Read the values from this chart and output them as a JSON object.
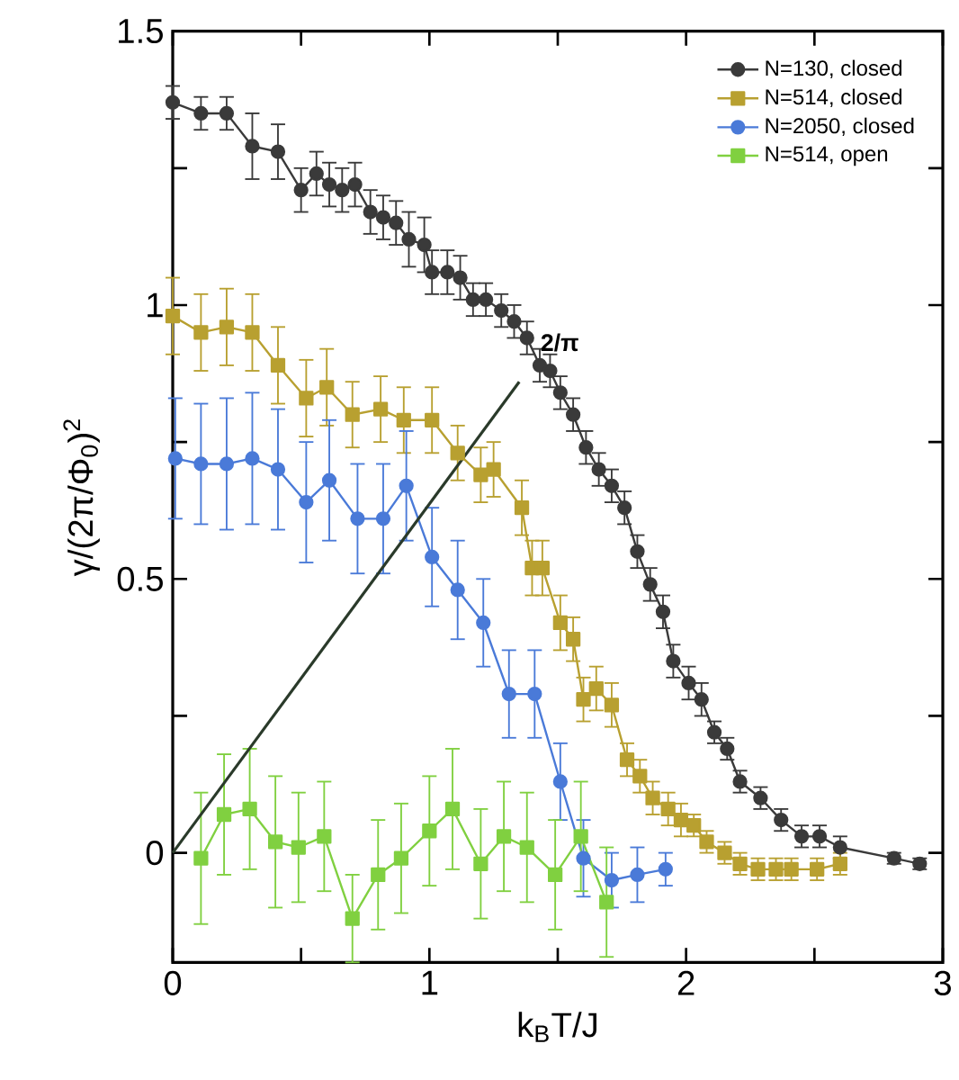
{
  "chart_data": {
    "type": "line",
    "xlabel": "k$_{B}$T/J",
    "ylabel": "γ/(2π/Φ$_{0}$)$^{2}$",
    "xlim": [
      0,
      3
    ],
    "ylim": [
      -0.2,
      1.5
    ],
    "xticks": [
      0,
      {
        "value": 0.5,
        "label": null
      },
      1,
      {
        "value": 1.5,
        "label": null
      },
      2,
      {
        "value": 2.5,
        "label": null
      },
      3
    ],
    "yticks": [
      0,
      {
        "value": 0.25,
        "label": null
      },
      0.5,
      {
        "value": 0.75,
        "label": null
      },
      1,
      {
        "value": 1.25,
        "label": null
      },
      1.5
    ],
    "legend": "top right",
    "annotations": [
      {
        "text": "2/π",
        "x": 1.4,
        "y": 0.9
      }
    ],
    "series": [
      {
        "name": "N=130, closed",
        "color": "#3a3a3a",
        "marker": "circle",
        "x": [
          0.0,
          0.11,
          0.21,
          0.31,
          0.41,
          0.5,
          0.56,
          0.61,
          0.66,
          0.71,
          0.77,
          0.82,
          0.87,
          0.92,
          0.98,
          1.01,
          1.07,
          1.12,
          1.17,
          1.22,
          1.28,
          1.33,
          1.38,
          1.43,
          1.47,
          1.51,
          1.56,
          1.61,
          1.66,
          1.71,
          1.76,
          1.81,
          1.86,
          1.91,
          1.95,
          2.01,
          2.06,
          2.11,
          2.16,
          2.21,
          2.29,
          2.37,
          2.45,
          2.52,
          2.6,
          2.81,
          2.91
        ],
        "values": [
          1.37,
          1.35,
          1.35,
          1.29,
          1.28,
          1.21,
          1.24,
          1.22,
          1.21,
          1.22,
          1.17,
          1.16,
          1.15,
          1.12,
          1.11,
          1.06,
          1.06,
          1.05,
          1.01,
          1.01,
          0.99,
          0.97,
          0.94,
          0.89,
          0.88,
          0.84,
          0.8,
          0.74,
          0.7,
          0.67,
          0.63,
          0.55,
          0.49,
          0.44,
          0.35,
          0.31,
          0.28,
          0.22,
          0.19,
          0.13,
          0.1,
          0.06,
          0.03,
          0.03,
          0.01,
          -0.01,
          -0.02
        ],
        "errors": [
          0.03,
          0.03,
          0.03,
          0.06,
          0.05,
          0.04,
          0.04,
          0.04,
          0.04,
          0.04,
          0.04,
          0.04,
          0.04,
          0.05,
          0.05,
          0.04,
          0.04,
          0.04,
          0.03,
          0.03,
          0.03,
          0.03,
          0.03,
          0.03,
          0.03,
          0.03,
          0.03,
          0.03,
          0.03,
          0.03,
          0.03,
          0.03,
          0.03,
          0.03,
          0.03,
          0.03,
          0.03,
          0.02,
          0.02,
          0.02,
          0.02,
          0.02,
          0.02,
          0.02,
          0.02,
          0.01,
          0.01
        ]
      },
      {
        "name": "N=514, closed",
        "color": "#b8a030",
        "marker": "square",
        "x": [
          0.0,
          0.11,
          0.21,
          0.31,
          0.41,
          0.52,
          0.6,
          0.7,
          0.81,
          0.9,
          1.01,
          1.11,
          1.2,
          1.25,
          1.36,
          1.4,
          1.44,
          1.51,
          1.56,
          1.6,
          1.65,
          1.71,
          1.77,
          1.82,
          1.87,
          1.93,
          1.98,
          2.03,
          2.08,
          2.15,
          2.21,
          2.28,
          2.35,
          2.41,
          2.51,
          2.6
        ],
        "values": [
          0.98,
          0.95,
          0.96,
          0.95,
          0.89,
          0.83,
          0.85,
          0.8,
          0.81,
          0.79,
          0.79,
          0.73,
          0.69,
          0.7,
          0.63,
          0.52,
          0.52,
          0.42,
          0.39,
          0.28,
          0.3,
          0.27,
          0.17,
          0.14,
          0.1,
          0.08,
          0.06,
          0.05,
          0.02,
          0.0,
          -0.02,
          -0.03,
          -0.03,
          -0.03,
          -0.03,
          -0.02
        ],
        "errors": [
          0.07,
          0.07,
          0.07,
          0.07,
          0.07,
          0.07,
          0.07,
          0.06,
          0.06,
          0.06,
          0.06,
          0.05,
          0.05,
          0.05,
          0.05,
          0.05,
          0.05,
          0.05,
          0.04,
          0.04,
          0.04,
          0.04,
          0.03,
          0.03,
          0.03,
          0.03,
          0.03,
          0.02,
          0.02,
          0.02,
          0.02,
          0.02,
          0.02,
          0.02,
          0.02,
          0.02
        ]
      },
      {
        "name": "N=2050, closed",
        "color": "#4a7ad8",
        "marker": "circle",
        "x": [
          0.01,
          0.11,
          0.21,
          0.31,
          0.41,
          0.52,
          0.61,
          0.72,
          0.82,
          0.91,
          1.01,
          1.11,
          1.21,
          1.31,
          1.41,
          1.51,
          1.6,
          1.71,
          1.81,
          1.92
        ],
        "values": [
          0.72,
          0.71,
          0.71,
          0.72,
          0.7,
          0.64,
          0.68,
          0.61,
          0.61,
          0.67,
          0.54,
          0.48,
          0.42,
          0.29,
          0.29,
          0.13,
          -0.01,
          -0.05,
          -0.04,
          -0.03
        ],
        "errors": [
          0.11,
          0.11,
          0.12,
          0.12,
          0.11,
          0.11,
          0.11,
          0.1,
          0.1,
          0.1,
          0.09,
          0.09,
          0.08,
          0.08,
          0.08,
          0.07,
          0.07,
          0.05,
          0.05,
          0.03
        ]
      },
      {
        "name": "N=514, open",
        "color": "#80d040",
        "marker": "square",
        "x": [
          0.11,
          0.2,
          0.3,
          0.4,
          0.49,
          0.59,
          0.7,
          0.8,
          0.89,
          1.0,
          1.09,
          1.2,
          1.29,
          1.38,
          1.49,
          1.59,
          1.69
        ],
        "values": [
          -0.01,
          0.07,
          0.08,
          0.02,
          0.01,
          0.03,
          -0.12,
          -0.04,
          -0.01,
          0.04,
          0.08,
          -0.02,
          0.03,
          0.01,
          -0.04,
          0.03,
          -0.09
        ],
        "errors": [
          0.12,
          0.11,
          0.11,
          0.12,
          0.1,
          0.1,
          0.08,
          0.1,
          0.1,
          0.1,
          0.11,
          0.1,
          0.1,
          0.1,
          0.1,
          0.1,
          0.1
        ]
      },
      {
        "type": "line",
        "color": "#2a3a2a",
        "marker": "none",
        "x": [
          0,
          1.35
        ],
        "values": [
          0,
          0.86
        ]
      }
    ]
  }
}
